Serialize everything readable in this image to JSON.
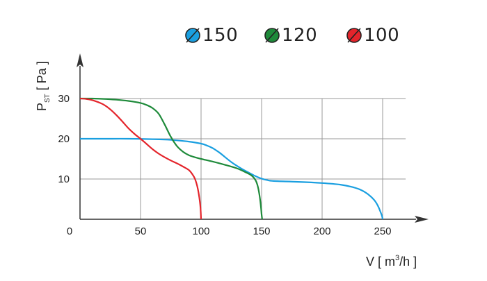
{
  "chart_data": {
    "type": "line",
    "xlabel_main": "V [ m",
    "xlabel_sup": "3",
    "xlabel_tail": "/h ]",
    "ylabel_main": "P",
    "ylabel_sub": "ST",
    "ylabel_tail": " [ Pa ]",
    "origin_label": "0",
    "x_ticks": [
      "50",
      "100",
      "150",
      "200",
      "250"
    ],
    "y_ticks": [
      "10",
      "20",
      "30"
    ],
    "xlim": [
      0,
      280
    ],
    "ylim": [
      0,
      40
    ],
    "grid": true,
    "legend_position": "top-right",
    "series": [
      {
        "name": "150",
        "color": "#1a9fe0",
        "points": [
          [
            0,
            20
          ],
          [
            20,
            20
          ],
          [
            40,
            20
          ],
          [
            60,
            19.9
          ],
          [
            70,
            19.8
          ],
          [
            80,
            19.6
          ],
          [
            90,
            19.3
          ],
          [
            100,
            18.8
          ],
          [
            105,
            18.3
          ],
          [
            110,
            17.6
          ],
          [
            115,
            16.6
          ],
          [
            120,
            15.4
          ],
          [
            125,
            14.2
          ],
          [
            130,
            13.2
          ],
          [
            135,
            12.3
          ],
          [
            140,
            11.5
          ],
          [
            145,
            10.7
          ],
          [
            150,
            10.1
          ],
          [
            155,
            9.7
          ],
          [
            160,
            9.5
          ],
          [
            180,
            9.3
          ],
          [
            200,
            9.0
          ],
          [
            215,
            8.6
          ],
          [
            225,
            8.0
          ],
          [
            232,
            7.3
          ],
          [
            238,
            6.2
          ],
          [
            243,
            4.8
          ],
          [
            246,
            3.4
          ],
          [
            248,
            2.0
          ],
          [
            249.5,
            0.8
          ],
          [
            250,
            0
          ]
        ]
      },
      {
        "name": "120",
        "color": "#1e8a3a",
        "points": [
          [
            0,
            30
          ],
          [
            10,
            30
          ],
          [
            20,
            29.9
          ],
          [
            30,
            29.7
          ],
          [
            40,
            29.4
          ],
          [
            50,
            28.9
          ],
          [
            55,
            28.4
          ],
          [
            60,
            27.6
          ],
          [
            65,
            26.2
          ],
          [
            70,
            23.5
          ],
          [
            75,
            20.5
          ],
          [
            80,
            18.2
          ],
          [
            85,
            16.8
          ],
          [
            90,
            15.9
          ],
          [
            95,
            15.4
          ],
          [
            100,
            15.0
          ],
          [
            110,
            14.3
          ],
          [
            120,
            13.5
          ],
          [
            130,
            12.6
          ],
          [
            138,
            11.5
          ],
          [
            142,
            10.8
          ],
          [
            145,
            9.7
          ],
          [
            147,
            8.0
          ],
          [
            148.5,
            5.5
          ],
          [
            149.5,
            3.0
          ],
          [
            150,
            1.2
          ],
          [
            150.5,
            0
          ]
        ]
      },
      {
        "name": "100",
        "color": "#e4242b",
        "points": [
          [
            0,
            30
          ],
          [
            5,
            29.9
          ],
          [
            10,
            29.6
          ],
          [
            15,
            29.1
          ],
          [
            20,
            28.4
          ],
          [
            25,
            27.3
          ],
          [
            30,
            25.9
          ],
          [
            35,
            24.3
          ],
          [
            40,
            22.6
          ],
          [
            45,
            21.2
          ],
          [
            50,
            20.0
          ],
          [
            55,
            18.7
          ],
          [
            60,
            17.4
          ],
          [
            65,
            16.3
          ],
          [
            70,
            15.4
          ],
          [
            75,
            14.6
          ],
          [
            80,
            13.9
          ],
          [
            85,
            13.1
          ],
          [
            90,
            12.2
          ],
          [
            93,
            11.1
          ],
          [
            95,
            10.0
          ],
          [
            97,
            8.0
          ],
          [
            98.5,
            5.5
          ],
          [
            99.5,
            3.0
          ],
          [
            100,
            0
          ]
        ]
      }
    ]
  }
}
